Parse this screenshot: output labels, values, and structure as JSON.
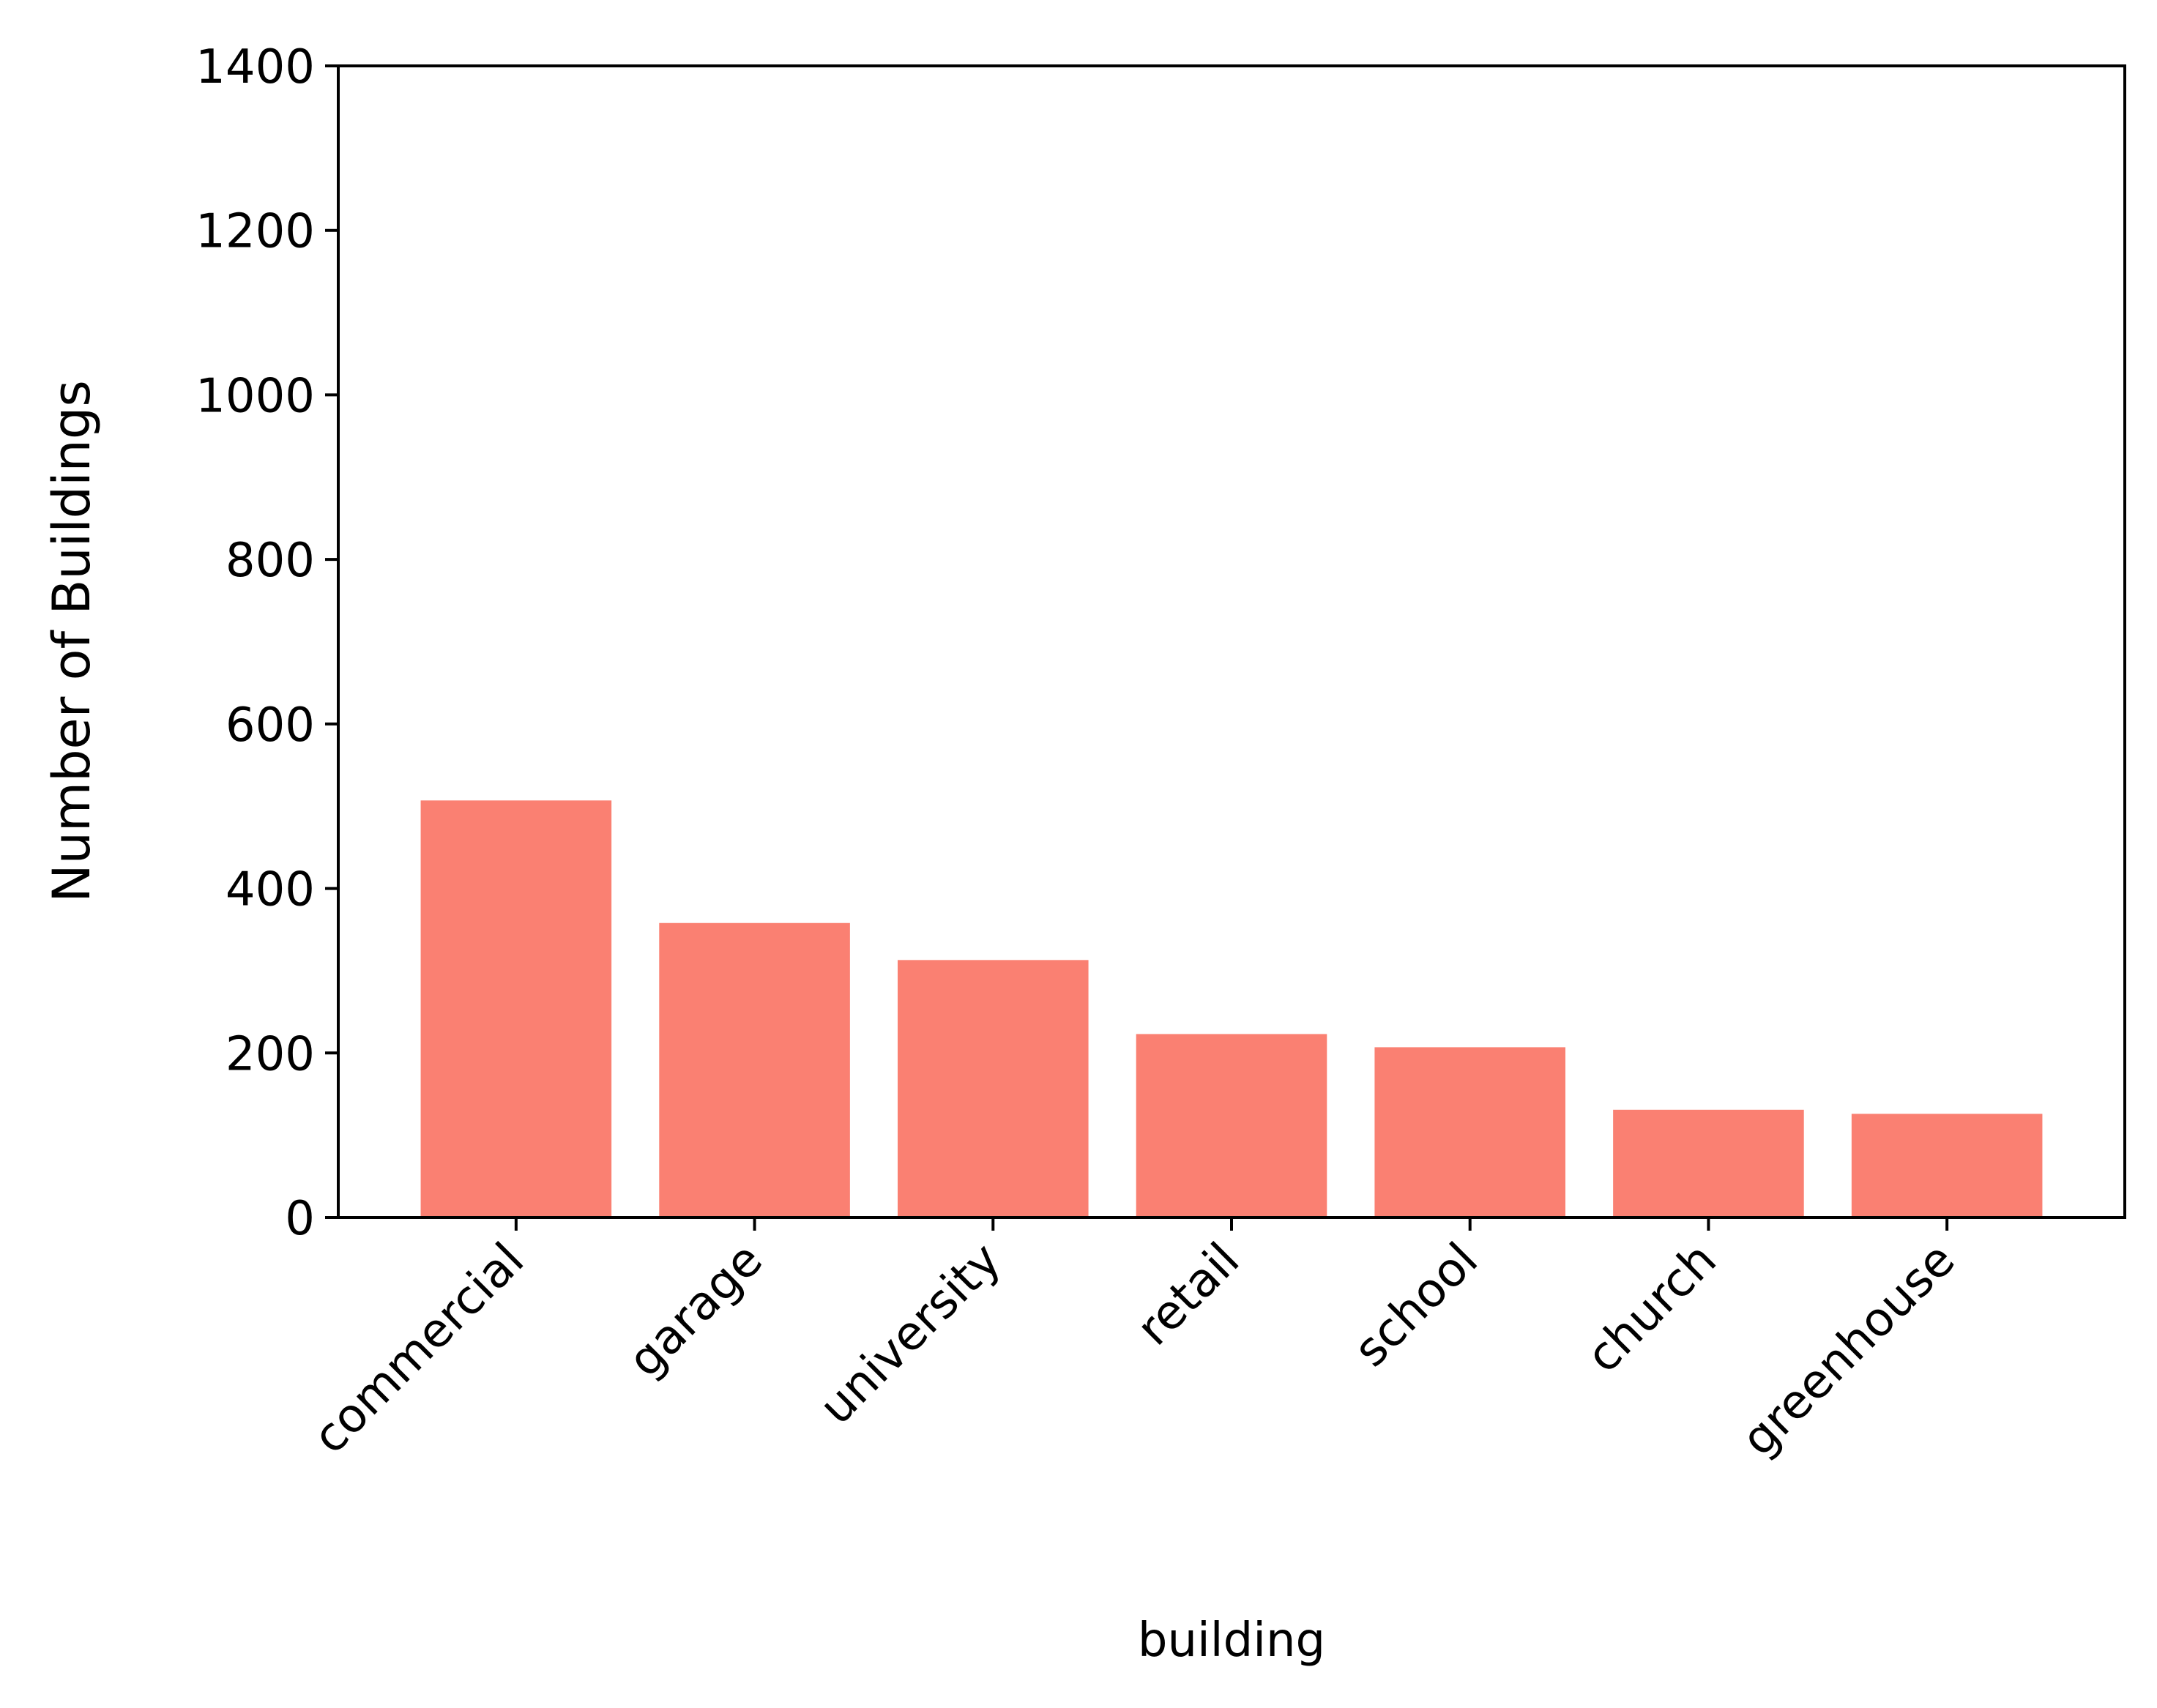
{
  "chart_data": {
    "type": "bar",
    "categories": [
      "commercial",
      "garage",
      "university",
      "retail",
      "school",
      "church",
      "greenhouse"
    ],
    "values": [
      507,
      358,
      313,
      223,
      207,
      131,
      126
    ],
    "xlabel": "building",
    "ylabel": "Number of Buildings",
    "ylim": [
      0,
      1400
    ],
    "yticks": [
      0,
      200,
      400,
      600,
      800,
      1000,
      1200,
      1400
    ],
    "bar_color": "#fa8072",
    "grid": false,
    "legend": "none"
  }
}
